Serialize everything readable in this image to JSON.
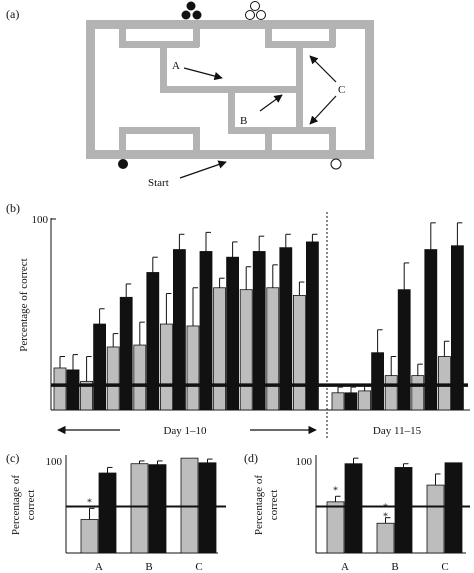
{
  "figure": {
    "panel_labels": {
      "a": "(a)",
      "b": "(b)",
      "c": "(c)",
      "d": "(d)"
    },
    "maze": {
      "label_a": "A",
      "label_b": "B",
      "label_c": "C",
      "start_label": "Start"
    },
    "colors": {
      "gray_bar": "#bdbdbd",
      "black_bar": "#111111",
      "maze_wall": "#b3b3b3"
    },
    "ref_marker": "*"
  },
  "chart_data": [
    {
      "type": "bar",
      "panel": "(b)",
      "ylabel": "Percentage of correct",
      "ylim": [
        0,
        100
      ],
      "yticks": [
        100
      ],
      "chance_level": 13,
      "grid": false,
      "groups": [
        {
          "label": "Day 1–10",
          "gray": [
            22,
            15,
            33,
            34,
            45,
            44,
            64,
            63,
            64,
            60
          ],
          "gray_err": [
            6,
            13,
            7,
            12,
            16,
            20,
            5,
            12,
            12,
            7
          ],
          "black": [
            21,
            45,
            59,
            72,
            84,
            83,
            80,
            83,
            85,
            88
          ],
          "black_err": [
            8,
            8,
            7,
            8,
            8,
            10,
            8,
            8,
            7,
            4
          ]
        },
        {
          "label": "Day 11–15",
          "gray": [
            9,
            10,
            18,
            18,
            28
          ],
          "gray_err": [
            3,
            3,
            10,
            6,
            8
          ],
          "black": [
            9,
            30,
            63,
            84,
            86
          ],
          "black_err": [
            3,
            12,
            14,
            14,
            12
          ]
        }
      ]
    },
    {
      "type": "bar",
      "panel": "(c)",
      "ylabel": "Percentage of correct",
      "ylim": [
        0,
        100
      ],
      "yticks": [
        100
      ],
      "chance_level": 50,
      "categories": [
        "A",
        "B",
        "C"
      ],
      "series": [
        {
          "values": [
            36,
            96,
            102
          ],
          "errors": [
            12,
            3,
            0
          ]
        },
        {
          "values": [
            86,
            95,
            97
          ],
          "errors": [
            6,
            4,
            4
          ]
        }
      ],
      "annotations": [
        {
          "category": "A",
          "text": "*"
        }
      ]
    },
    {
      "type": "bar",
      "panel": "(d)",
      "ylabel": "Percentage of correct",
      "ylim": [
        0,
        100
      ],
      "yticks": [
        100
      ],
      "chance_level": 50,
      "categories": [
        "A",
        "B",
        "C"
      ],
      "series": [
        {
          "values": [
            55,
            32,
            73
          ],
          "errors": [
            6,
            6,
            12
          ]
        },
        {
          "values": [
            96,
            92,
            97
          ],
          "errors": [
            6,
            4,
            0
          ]
        }
      ],
      "annotations": [
        {
          "category": "A",
          "text": "*"
        },
        {
          "category": "B",
          "text": "*"
        },
        {
          "category": "B",
          "text": "*"
        }
      ]
    }
  ]
}
